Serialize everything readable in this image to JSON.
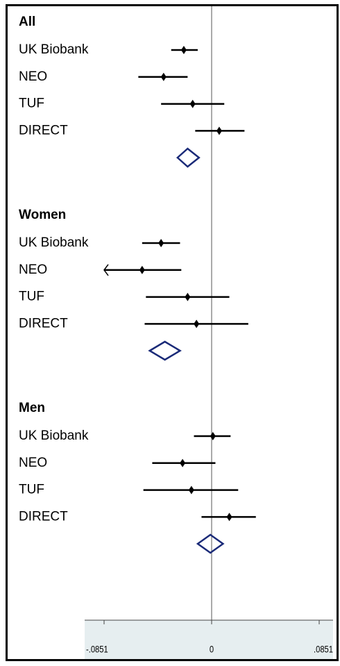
{
  "chart_data": {
    "type": "forest",
    "groups": [
      {
        "name": "All",
        "studies": [
          {
            "name": "UK Biobank",
            "estimate": -0.022,
            "lower": -0.032,
            "upper": -0.011
          },
          {
            "name": "NEO",
            "estimate": -0.038,
            "lower": -0.058,
            "upper": -0.019
          },
          {
            "name": "TUF",
            "estimate": -0.015,
            "lower": -0.04,
            "upper": 0.01
          },
          {
            "name": "DIRECT",
            "estimate": 0.006,
            "lower": -0.013,
            "upper": 0.026
          }
        ],
        "pooled": {
          "estimate": -0.019,
          "lower": -0.027,
          "upper": -0.01
        }
      },
      {
        "name": "Women",
        "studies": [
          {
            "name": "UK Biobank",
            "estimate": -0.04,
            "lower": -0.055,
            "upper": -0.025
          },
          {
            "name": "NEO",
            "estimate": -0.055,
            "lower": -0.095,
            "upper": -0.024
          },
          {
            "name": "TUF",
            "estimate": -0.019,
            "lower": -0.052,
            "upper": 0.014
          },
          {
            "name": "DIRECT",
            "estimate": -0.012,
            "lower": -0.053,
            "upper": 0.029
          }
        ],
        "pooled": {
          "estimate": -0.037,
          "lower": -0.049,
          "upper": -0.025
        }
      },
      {
        "name": "Men",
        "studies": [
          {
            "name": "UK Biobank",
            "estimate": 0.001,
            "lower": -0.014,
            "upper": 0.015
          },
          {
            "name": "NEO",
            "estimate": -0.023,
            "lower": -0.047,
            "upper": 0.003
          },
          {
            "name": "TUF",
            "estimate": -0.016,
            "lower": -0.054,
            "upper": 0.021
          },
          {
            "name": "DIRECT",
            "estimate": 0.014,
            "lower": -0.008,
            "upper": 0.035
          }
        ],
        "pooled": {
          "estimate": -0.001,
          "lower": -0.011,
          "upper": 0.009
        }
      }
    ],
    "xlim": [
      -0.0851,
      0.0851
    ],
    "xticks": [
      {
        "value": -0.0851,
        "label": "-.0851"
      },
      0,
      {
        "value": 0.0851,
        "label": ".0851"
      }
    ],
    "point_color": "#000000",
    "pooled_color": "#1a2a78"
  }
}
